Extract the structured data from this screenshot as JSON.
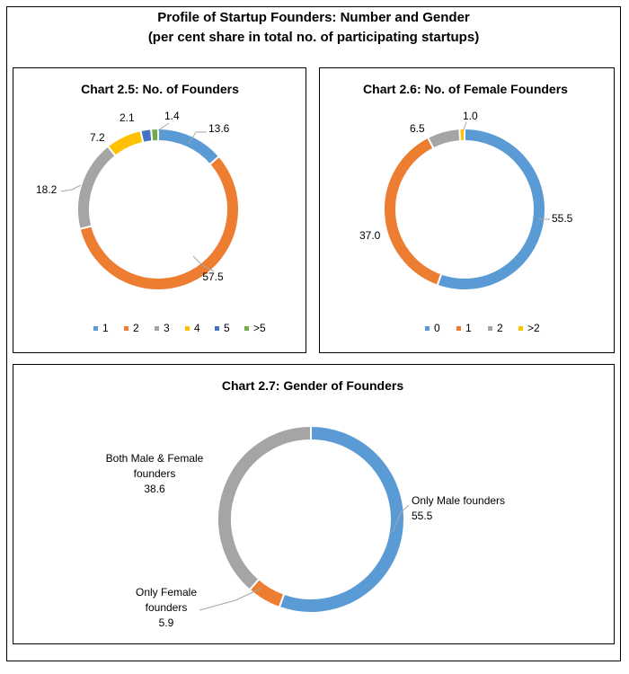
{
  "figure": {
    "title_line1": "Profile of Startup Founders: Number and Gender",
    "title_line2": "(per cent share in total no. of participating startups)"
  },
  "chart_data": [
    {
      "type": "pie",
      "donut": true,
      "title": "Chart 2.5: No. of Founders",
      "categories": [
        "1",
        "2",
        "3",
        "4",
        "5",
        ">5"
      ],
      "values": [
        13.6,
        57.5,
        18.2,
        7.2,
        2.1,
        1.4
      ],
      "data_labels": [
        "13.6",
        "57.5",
        "18.2",
        "7.2",
        "",
        "1.4"
      ],
      "extra_label": "2.1",
      "colors": [
        "#5B9BD5",
        "#ED7D31",
        "#A5A5A5",
        "#FFC000",
        "#4472C4",
        "#70AD47"
      ],
      "legend": "bottom"
    },
    {
      "type": "pie",
      "donut": true,
      "title": "Chart 2.6: No. of Female Founders",
      "categories": [
        "0",
        "1",
        "2",
        ">2"
      ],
      "values": [
        55.5,
        37.0,
        6.5,
        1.0
      ],
      "data_labels": [
        "55.5",
        "37.0",
        "6.5",
        "1.0"
      ],
      "colors": [
        "#5B9BD5",
        "#ED7D31",
        "#A5A5A5",
        "#FFC000"
      ],
      "legend": "bottom"
    },
    {
      "type": "pie",
      "donut": true,
      "title": "Chart 2.7: Gender of Founders",
      "categories": [
        "Only Male founders",
        "Only Female founders",
        "Both Male & Female founders"
      ],
      "values": [
        55.5,
        5.9,
        38.6
      ],
      "data_labels": [
        "55.5",
        "5.9",
        "38.6"
      ],
      "label_lines": [
        [
          "Only Male founders"
        ],
        [
          "Only Female",
          "founders"
        ],
        [
          "Both Male & Female",
          "founders"
        ]
      ],
      "colors": [
        "#5B9BD5",
        "#ED7D31",
        "#A5A5A5"
      ],
      "legend": "none"
    }
  ]
}
